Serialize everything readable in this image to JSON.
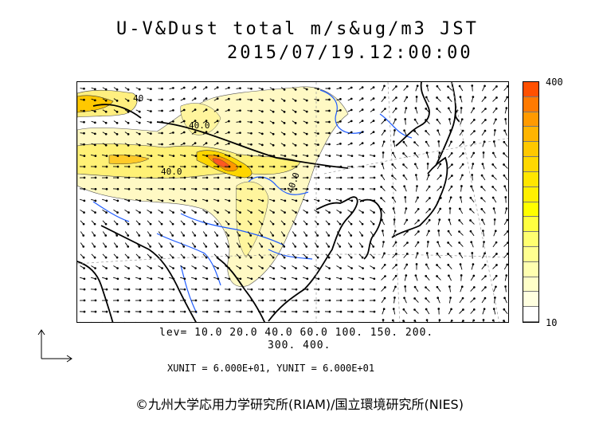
{
  "title": {
    "line1": "U-V&Dust total m/s&ug/m3 JST",
    "line2": "2015/07/19.12:00:00"
  },
  "colorbar": {
    "max_label": "400",
    "min_label": "10",
    "colors": [
      "#ff5000",
      "#ff7a00",
      "#ff9a00",
      "#ffb400",
      "#ffc800",
      "#ffd800",
      "#ffe600",
      "#fff000",
      "#ffff00",
      "#ffff40",
      "#ffff70",
      "#ffff90",
      "#ffffb0",
      "#ffffc8",
      "#ffffe0",
      "#ffffff"
    ]
  },
  "levels": {
    "line1": "lev= 10.0 20.0 40.0 60.0 100. 150. 200.",
    "line2": "300. 400."
  },
  "units": "XUNIT = 6.000E+01, YUNIT = 6.000E+01",
  "contour_labels": [
    "40.0",
    "40.0",
    "40.0",
    "40"
  ],
  "credit": "©九州大学応用力学研究所(RIAM)/国立環境研究所(NIES)"
}
